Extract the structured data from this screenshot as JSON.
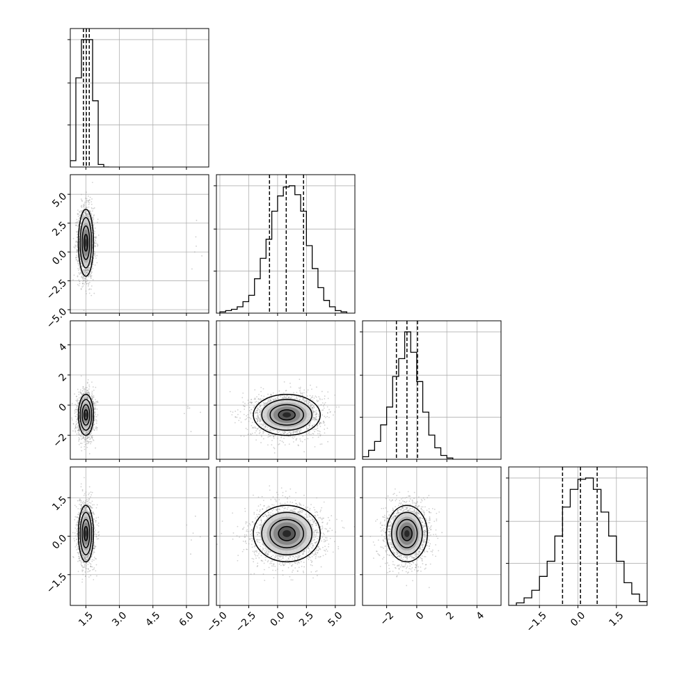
{
  "chart_data": {
    "type": "corner",
    "n_params": 4,
    "grid": true,
    "quantiles": [
      0.16,
      0.5,
      0.84
    ],
    "colors": {
      "axes": "#000000",
      "grid": "#b0b0b0",
      "points": "#9a9a9a",
      "contour": "#000000"
    },
    "params": [
      {
        "range": [
          0.8,
          7.0
        ],
        "ticks": [
          1.5,
          3.0,
          4.5,
          6.0
        ],
        "tick_labels": [
          "1.5",
          "3.0",
          "4.5",
          "6.0"
        ],
        "center": 1.5,
        "spread": 0.17,
        "quantile_values": [
          1.39,
          1.52,
          1.65
        ]
      },
      {
        "range": [
          -5.3,
          6.7
        ],
        "ticks": [
          -5.0,
          -2.5,
          0.0,
          2.5,
          5.0
        ],
        "tick_labels": [
          "−5.0",
          "−2.5",
          "0.0",
          "2.5",
          "5.0"
        ],
        "center": 0.8,
        "spread": 1.45,
        "quantile_values": [
          -0.7,
          0.75,
          2.25
        ]
      },
      {
        "range": [
          -3.6,
          5.6
        ],
        "ticks": [
          -2,
          0,
          2,
          4
        ],
        "tick_labels": [
          "−2",
          "0",
          "2",
          "4"
        ],
        "center": -0.65,
        "spread": 0.68,
        "quantile_values": [
          -1.35,
          -0.65,
          0.05
        ]
      },
      {
        "range": [
          -2.7,
          2.7
        ],
        "ticks": [
          -1.5,
          0.0,
          1.5
        ],
        "tick_labels": [
          "−1.5",
          "0.0",
          "1.5"
        ],
        "center": 0.1,
        "spread": 0.55,
        "quantile_values": [
          -0.6,
          0.1,
          0.75
        ]
      }
    ],
    "histograms": [
      {
        "param": 0,
        "bin_edges": [
          0.8,
          1.05,
          1.3,
          1.55,
          1.8,
          2.05,
          2.3,
          2.55
        ],
        "counts": [
          5,
          70,
          100,
          100,
          52,
          2,
          0
        ]
      },
      {
        "param": 1,
        "bin_edges": [
          -5.0,
          -4.5,
          -4.0,
          -3.5,
          -3.0,
          -2.5,
          -2.0,
          -1.5,
          -1.0,
          -0.5,
          0.0,
          0.5,
          1.0,
          1.5,
          2.0,
          2.5,
          3.0,
          3.5,
          4.0,
          4.5,
          5.0,
          5.5,
          6.0
        ],
        "counts": [
          1,
          2,
          3,
          5,
          9,
          14,
          27,
          43,
          58,
          80,
          92,
          99,
          100,
          93,
          80,
          53,
          35,
          20,
          10,
          5,
          2,
          1
        ]
      },
      {
        "param": 2,
        "bin_edges": [
          -3.6,
          -3.2,
          -2.8,
          -2.4,
          -2.0,
          -1.6,
          -1.2,
          -0.8,
          -0.4,
          0.0,
          0.4,
          0.8,
          1.2,
          1.6,
          2.0,
          2.4
        ],
        "counts": [
          2,
          7,
          14,
          27,
          41,
          65,
          79,
          100,
          84,
          61,
          37,
          19,
          9,
          3,
          1
        ]
      },
      {
        "param": 3,
        "bin_edges": [
          -2.7,
          -2.4,
          -2.1,
          -1.8,
          -1.5,
          -1.2,
          -0.9,
          -0.6,
          -0.3,
          0.0,
          0.3,
          0.6,
          0.9,
          1.2,
          1.5,
          1.8,
          2.1,
          2.4,
          2.7
        ],
        "counts": [
          0,
          2,
          6,
          12,
          23,
          35,
          55,
          78,
          92,
          100,
          101,
          92,
          74,
          55,
          35,
          18,
          9,
          3
        ]
      }
    ],
    "scatter_pairs": [
      {
        "x_param": 0,
        "y_param": 1
      },
      {
        "x_param": 0,
        "y_param": 2
      },
      {
        "x_param": 1,
        "y_param": 2
      },
      {
        "x_param": 0,
        "y_param": 3
      },
      {
        "x_param": 1,
        "y_param": 3
      },
      {
        "x_param": 2,
        "y_param": 3
      }
    ]
  }
}
